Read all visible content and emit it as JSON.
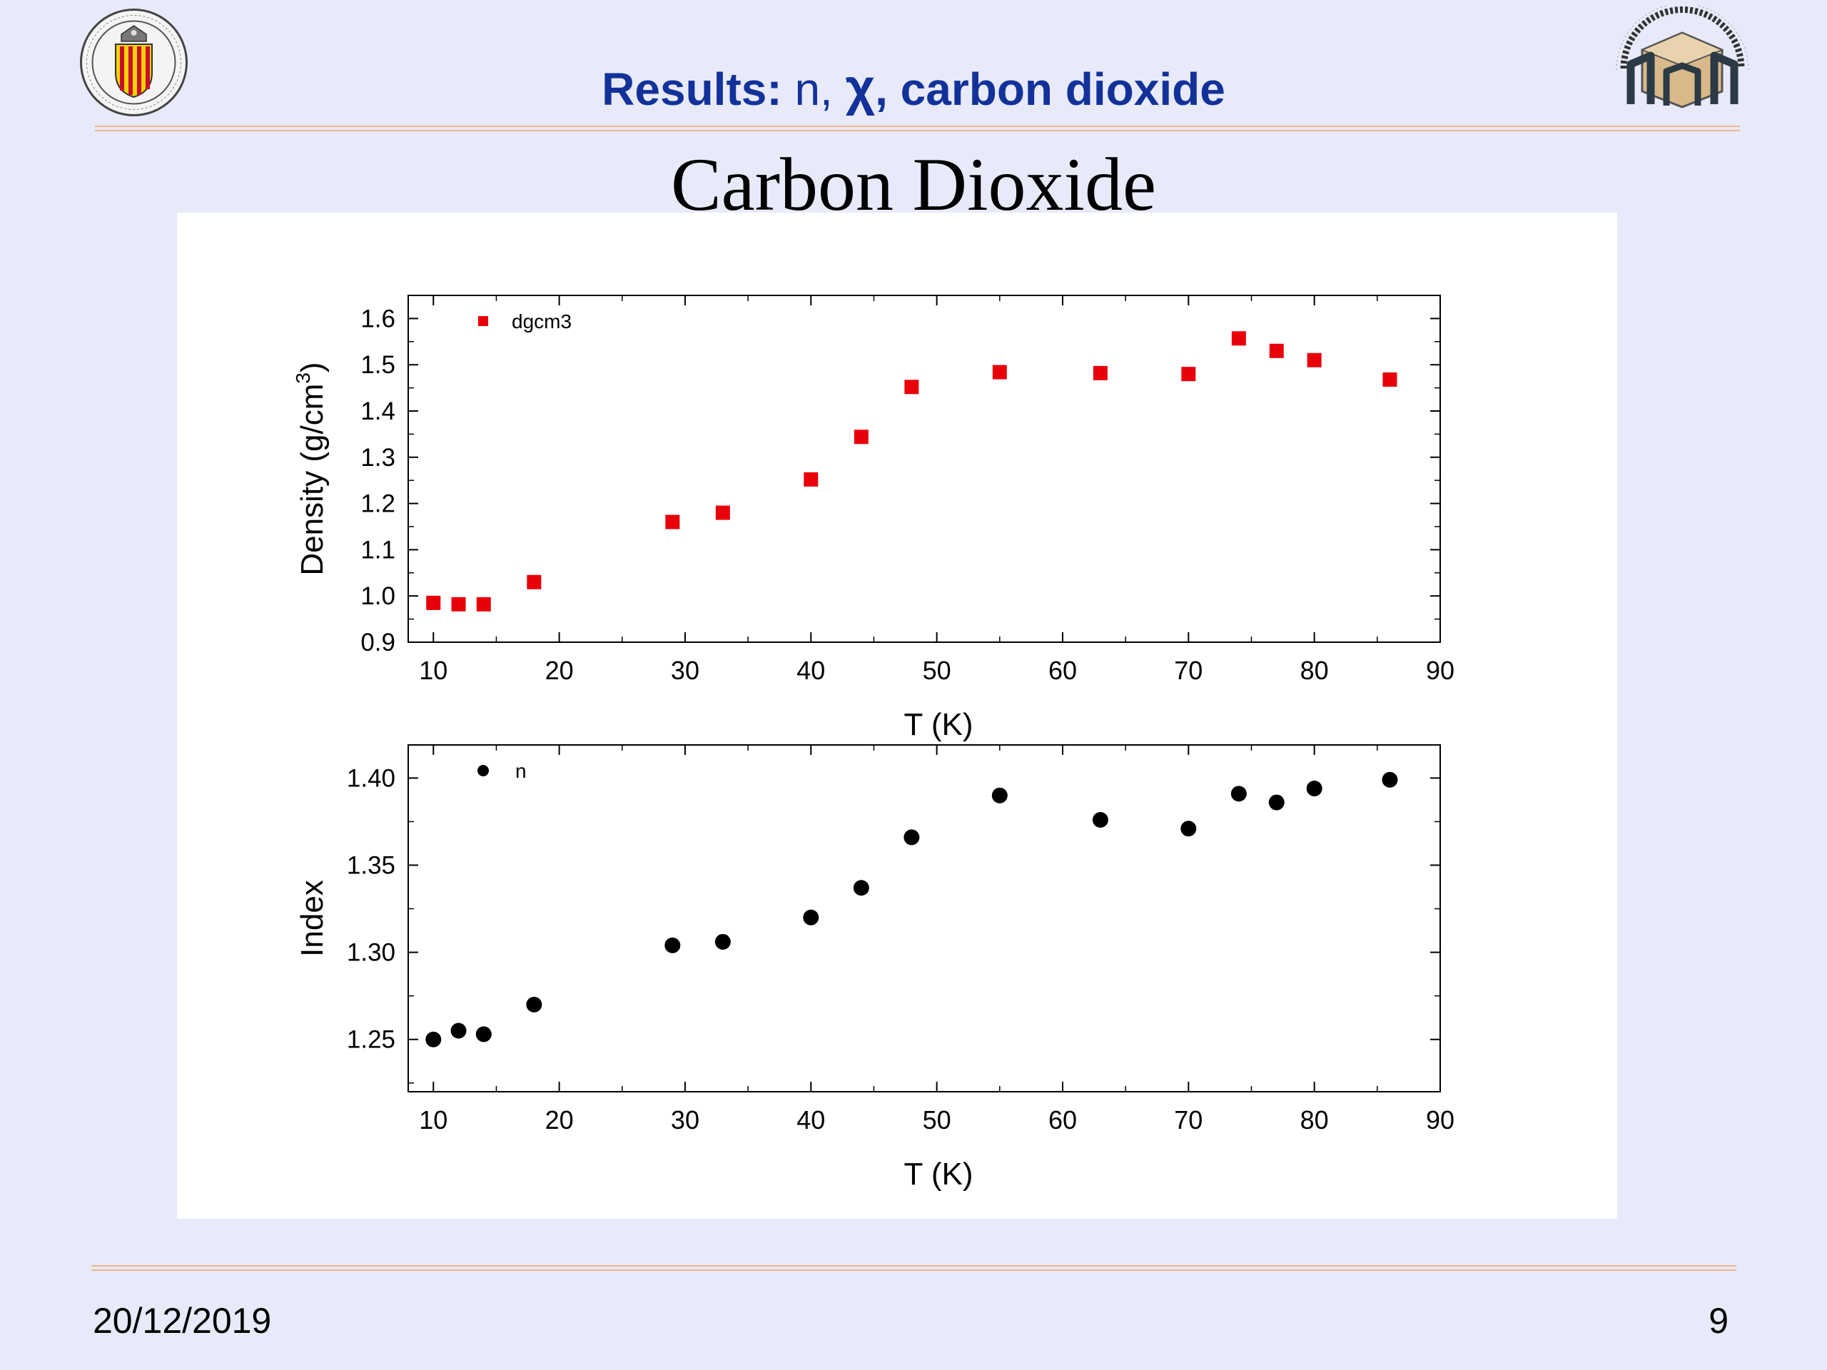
{
  "slide": {
    "title_bold": "Results:",
    "title_n": " n, ",
    "title_chi": "χ",
    "title_rest": ", carbon dioxide",
    "figure_title": "Carbon Dioxide",
    "date": "20/12/2019",
    "page_number": "9"
  },
  "colors": {
    "background": "#e8eafa",
    "title_blue": "#12329a",
    "rule_orange": "#f0b48c",
    "density_marker": "#e8000b",
    "index_marker": "#000000"
  },
  "logos": {
    "left": "university-seal",
    "right": "school-emblem"
  },
  "chart_data": [
    {
      "type": "scatter",
      "title": "",
      "xlabel": "T (K)",
      "ylabel": "Density (g/cm³)",
      "ylabel_base": "Density (g/cm",
      "ylabel_sup": "3",
      "ylabel_end": ")",
      "xlim": [
        8,
        90
      ],
      "ylim": [
        0.9,
        1.65
      ],
      "xticks": [
        10,
        20,
        30,
        40,
        50,
        60,
        70,
        80,
        90
      ],
      "yticks": [
        0.9,
        1.0,
        1.1,
        1.2,
        1.3,
        1.4,
        1.5,
        1.6
      ],
      "ytick_labels": [
        "0.9",
        "1.0",
        "1.1",
        "1.2",
        "1.3",
        "1.4",
        "1.5",
        "1.6"
      ],
      "legend_position": "top-left",
      "marker": "square",
      "series": [
        {
          "name": "dgcm3",
          "x": [
            10,
            12,
            14,
            18,
            29,
            33,
            40,
            44,
            48,
            55,
            63,
            70,
            74,
            77,
            80,
            86
          ],
          "y": [
            0.985,
            0.982,
            0.982,
            1.03,
            1.16,
            1.18,
            1.252,
            1.344,
            1.452,
            1.484,
            1.482,
            1.48,
            1.557,
            1.53,
            1.51,
            1.468
          ]
        }
      ]
    },
    {
      "type": "scatter",
      "title": "",
      "xlabel": "T (K)",
      "ylabel": "Index",
      "xlim": [
        8,
        90
      ],
      "ylim": [
        1.22,
        1.419
      ],
      "xticks": [
        10,
        20,
        30,
        40,
        50,
        60,
        70,
        80,
        90
      ],
      "yticks": [
        1.25,
        1.3,
        1.35,
        1.4
      ],
      "ytick_labels": [
        "1.25",
        "1.30",
        "1.35",
        "1.40"
      ],
      "legend_position": "top-left",
      "marker": "circle",
      "series": [
        {
          "name": "n",
          "x": [
            10,
            12,
            14,
            18,
            29,
            33,
            40,
            44,
            48,
            55,
            63,
            70,
            74,
            77,
            80,
            86
          ],
          "y": [
            1.25,
            1.255,
            1.253,
            1.27,
            1.304,
            1.306,
            1.32,
            1.337,
            1.366,
            1.39,
            1.376,
            1.371,
            1.391,
            1.386,
            1.394,
            1.399
          ]
        }
      ]
    }
  ]
}
